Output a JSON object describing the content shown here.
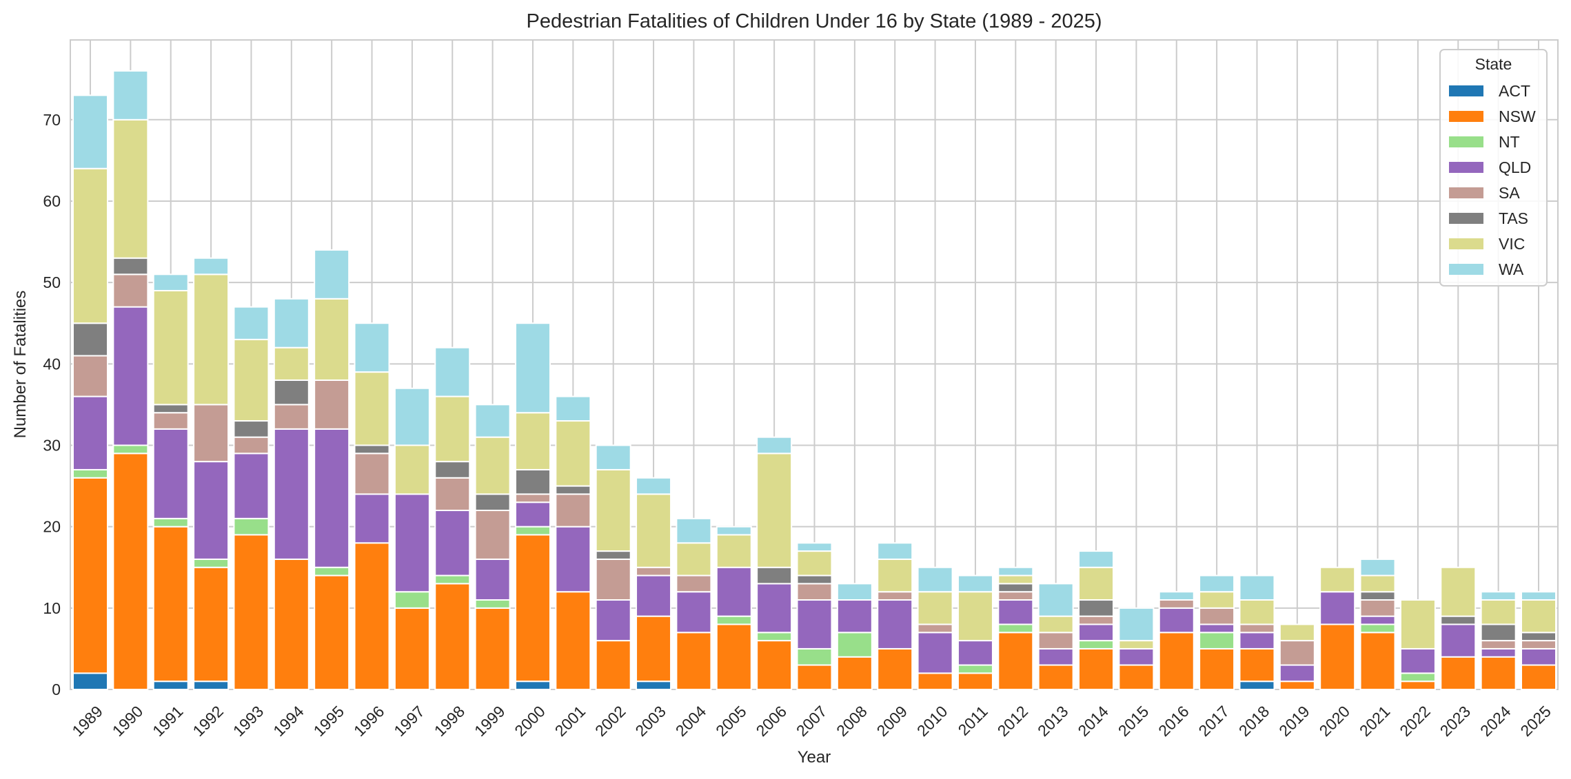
{
  "chart_data": {
    "type": "bar",
    "stacked": true,
    "title": "Pedestrian Fatalities of Children Under 16 by State (1989 - 2025)",
    "xlabel": "Year",
    "ylabel": "Number of Fatalities",
    "ylim": [
      0,
      79.8
    ],
    "yticks": [
      0,
      10,
      20,
      30,
      40,
      50,
      60,
      70
    ],
    "grid": true,
    "legend": {
      "title": "State",
      "position": "top-right"
    },
    "categories": [
      "1989",
      "1990",
      "1991",
      "1992",
      "1993",
      "1994",
      "1995",
      "1996",
      "1997",
      "1998",
      "1999",
      "2000",
      "2001",
      "2002",
      "2003",
      "2004",
      "2005",
      "2006",
      "2007",
      "2008",
      "2009",
      "2010",
      "2011",
      "2012",
      "2013",
      "2014",
      "2015",
      "2016",
      "2017",
      "2018",
      "2019",
      "2020",
      "2021",
      "2022",
      "2023",
      "2024",
      "2025"
    ],
    "series": [
      {
        "name": "ACT",
        "color": "#1f77b4",
        "values": [
          2,
          0,
          1,
          1,
          0,
          0,
          0,
          0,
          0,
          0,
          0,
          1,
          0,
          0,
          1,
          0,
          0,
          0,
          0,
          0,
          0,
          0,
          0,
          0,
          0,
          0,
          0,
          0,
          0,
          1,
          0,
          0,
          0,
          0,
          0,
          0,
          0
        ]
      },
      {
        "name": "NSW",
        "color": "#ff7f0e",
        "values": [
          24,
          29,
          19,
          14,
          19,
          16,
          14,
          18,
          10,
          13,
          10,
          18,
          12,
          6,
          8,
          7,
          8,
          6,
          3,
          4,
          5,
          2,
          2,
          7,
          3,
          5,
          3,
          7,
          5,
          4,
          1,
          8,
          7,
          1,
          4,
          4,
          3
        ]
      },
      {
        "name": "NT",
        "color": "#98df8a",
        "values": [
          1,
          1,
          1,
          1,
          2,
          0,
          1,
          0,
          2,
          1,
          1,
          1,
          0,
          0,
          0,
          0,
          1,
          1,
          2,
          3,
          0,
          0,
          1,
          1,
          0,
          1,
          0,
          0,
          2,
          0,
          0,
          0,
          1,
          1,
          0,
          0,
          0
        ]
      },
      {
        "name": "QLD",
        "color": "#9467bd",
        "values": [
          9,
          17,
          11,
          12,
          8,
          16,
          17,
          6,
          12,
          8,
          5,
          3,
          8,
          5,
          5,
          5,
          6,
          6,
          6,
          4,
          6,
          5,
          3,
          3,
          2,
          2,
          2,
          3,
          1,
          2,
          2,
          4,
          1,
          3,
          4,
          1,
          2
        ]
      },
      {
        "name": "SA",
        "color": "#c49c94",
        "values": [
          5,
          4,
          2,
          7,
          2,
          3,
          6,
          5,
          0,
          4,
          6,
          1,
          4,
          5,
          1,
          2,
          0,
          0,
          2,
          0,
          1,
          1,
          0,
          1,
          2,
          1,
          0,
          1,
          2,
          1,
          3,
          0,
          2,
          0,
          0,
          1,
          1
        ]
      },
      {
        "name": "TAS",
        "color": "#7f7f7f",
        "values": [
          4,
          2,
          1,
          0,
          2,
          3,
          0,
          1,
          0,
          2,
          2,
          3,
          1,
          1,
          0,
          0,
          0,
          2,
          1,
          0,
          0,
          0,
          0,
          1,
          0,
          2,
          0,
          0,
          0,
          0,
          0,
          0,
          1,
          0,
          1,
          2,
          1
        ]
      },
      {
        "name": "VIC",
        "color": "#dbdb8d",
        "values": [
          19,
          17,
          14,
          16,
          10,
          4,
          10,
          9,
          6,
          8,
          7,
          7,
          8,
          10,
          9,
          4,
          4,
          14,
          3,
          0,
          4,
          4,
          6,
          1,
          2,
          4,
          1,
          0,
          2,
          3,
          2,
          3,
          2,
          6,
          6,
          3,
          4
        ]
      },
      {
        "name": "WA",
        "color": "#9edae5",
        "values": [
          9,
          6,
          2,
          2,
          4,
          6,
          6,
          6,
          7,
          6,
          4,
          11,
          3,
          3,
          2,
          3,
          1,
          2,
          1,
          2,
          2,
          3,
          2,
          1,
          4,
          2,
          4,
          1,
          2,
          3,
          0,
          0,
          2,
          0,
          0,
          1,
          1
        ]
      }
    ]
  }
}
